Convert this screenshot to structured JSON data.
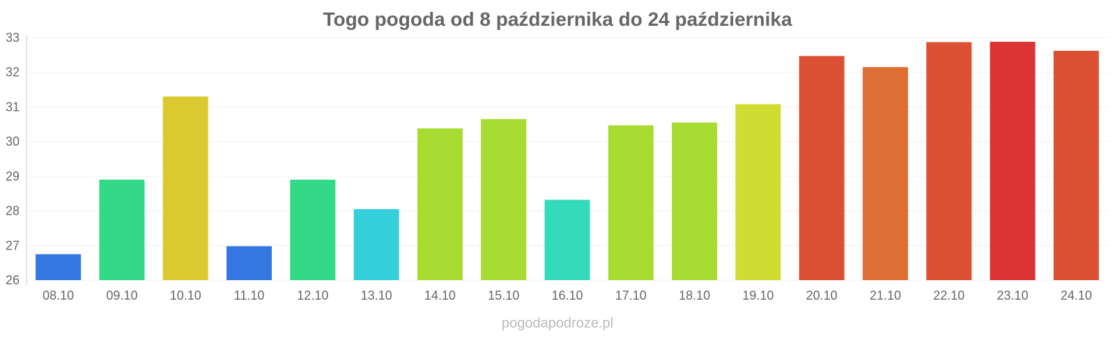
{
  "chart_data": {
    "type": "bar",
    "title": "Togo pogoda od 8 października do 24 października",
    "xlabel": "",
    "ylabel": "",
    "ylim": [
      26,
      33
    ],
    "yticks": [
      26,
      27,
      28,
      29,
      30,
      31,
      32,
      33
    ],
    "grid": true,
    "categories": [
      "08.10",
      "09.10",
      "10.10",
      "11.10",
      "12.10",
      "13.10",
      "14.10",
      "15.10",
      "16.10",
      "17.10",
      "18.10",
      "19.10",
      "20.10",
      "21.10",
      "22.10",
      "23.10",
      "24.10"
    ],
    "values": [
      26.75,
      28.9,
      31.3,
      26.98,
      28.9,
      28.05,
      30.38,
      30.65,
      28.32,
      30.47,
      30.55,
      31.08,
      32.47,
      32.15,
      32.87,
      32.88,
      32.62
    ],
    "colors": [
      "#3577e0",
      "#34d987",
      "#dbc930",
      "#3577e0",
      "#34d987",
      "#34cfdb",
      "#a9dc32",
      "#a9dc32",
      "#34dbba",
      "#a9dc32",
      "#a9dc32",
      "#cfdc32",
      "#dc5034",
      "#dd6f34",
      "#dc5034",
      "#dc3434",
      "#dc5034"
    ]
  },
  "watermark": "pogodapodroze.pl"
}
